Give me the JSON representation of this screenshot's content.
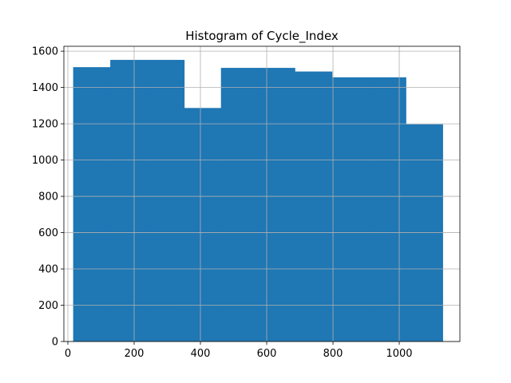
{
  "chart_data": {
    "type": "bar",
    "title": "Histogram of Cycle_Index",
    "xlabel": "",
    "ylabel": "",
    "xlim": [
      -12,
      1183
    ],
    "ylim": [
      0,
      1627
    ],
    "x_ticks": [
      0,
      200,
      400,
      600,
      800,
      1000
    ],
    "y_ticks": [
      0,
      200,
      400,
      600,
      800,
      1000,
      1200,
      1400,
      1600
    ],
    "grid": true,
    "bar_color": "#1f77b4",
    "bins": [
      {
        "x0": 16,
        "x1": 128,
        "value": 1512
      },
      {
        "x0": 128,
        "x1": 239,
        "value": 1552
      },
      {
        "x0": 239,
        "x1": 351,
        "value": 1552
      },
      {
        "x0": 351,
        "x1": 462,
        "value": 1287
      },
      {
        "x0": 462,
        "x1": 574,
        "value": 1508
      },
      {
        "x0": 574,
        "x1": 685,
        "value": 1508
      },
      {
        "x0": 685,
        "x1": 797,
        "value": 1488
      },
      {
        "x0": 797,
        "x1": 908,
        "value": 1456
      },
      {
        "x0": 908,
        "x1": 1020,
        "value": 1456
      },
      {
        "x0": 1020,
        "x1": 1131,
        "value": 1197
      }
    ]
  }
}
